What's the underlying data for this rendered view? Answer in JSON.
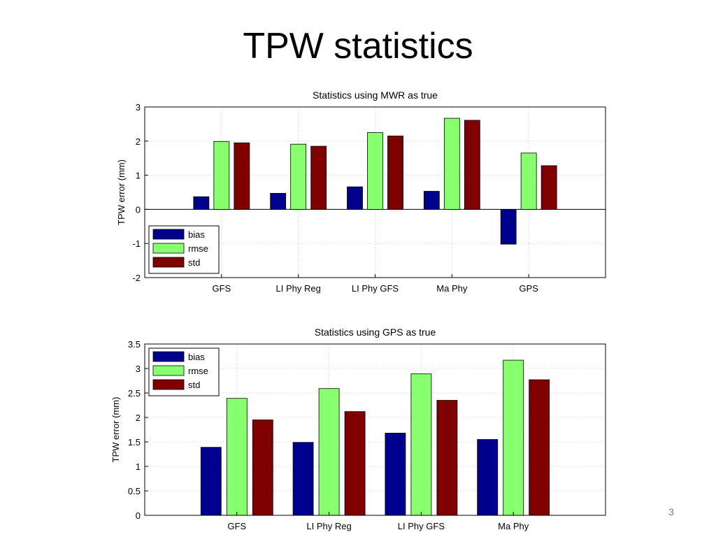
{
  "slide": {
    "title": "TPW statistics",
    "page_number": "3"
  },
  "colors": {
    "bias": "#00008f",
    "rmse": "#88ff6e",
    "std": "#800000"
  },
  "chart_data": [
    {
      "type": "bar",
      "title": "Statistics using MWR as true",
      "xlabel": "",
      "ylabel": "TPW error (mm)",
      "ylim": [
        -2,
        3
      ],
      "yticks": [
        "-2",
        "-1",
        "0",
        "1",
        "2",
        "3"
      ],
      "grid": true,
      "legend_position": "bottom-left",
      "categories": [
        "GFS",
        "LI Phy Reg",
        "LI Phy GFS",
        "Ma Phy",
        "GPS"
      ],
      "series": [
        {
          "name": "bias",
          "values": [
            0.37,
            0.47,
            0.66,
            0.53,
            -1.02
          ]
        },
        {
          "name": "rmse",
          "values": [
            1.99,
            1.91,
            2.25,
            2.67,
            1.65
          ]
        },
        {
          "name": "std",
          "values": [
            1.95,
            1.85,
            2.15,
            2.61,
            1.28
          ]
        }
      ]
    },
    {
      "type": "bar",
      "title": "Statistics using GPS as true",
      "xlabel": "",
      "ylabel": "TPW error (mm)",
      "ylim": [
        0,
        3.5
      ],
      "yticks": [
        "0",
        "0.5",
        "1",
        "1.5",
        "2",
        "2.5",
        "3",
        "3.5"
      ],
      "grid": true,
      "legend_position": "top-left",
      "categories": [
        "GFS",
        "LI Phy Reg",
        "LI Phy GFS",
        "Ma Phy"
      ],
      "series": [
        {
          "name": "bias",
          "values": [
            1.39,
            1.49,
            1.68,
            1.55
          ]
        },
        {
          "name": "rmse",
          "values": [
            2.39,
            2.59,
            2.89,
            3.17
          ]
        },
        {
          "name": "std",
          "values": [
            1.95,
            2.12,
            2.35,
            2.77
          ]
        }
      ]
    }
  ]
}
